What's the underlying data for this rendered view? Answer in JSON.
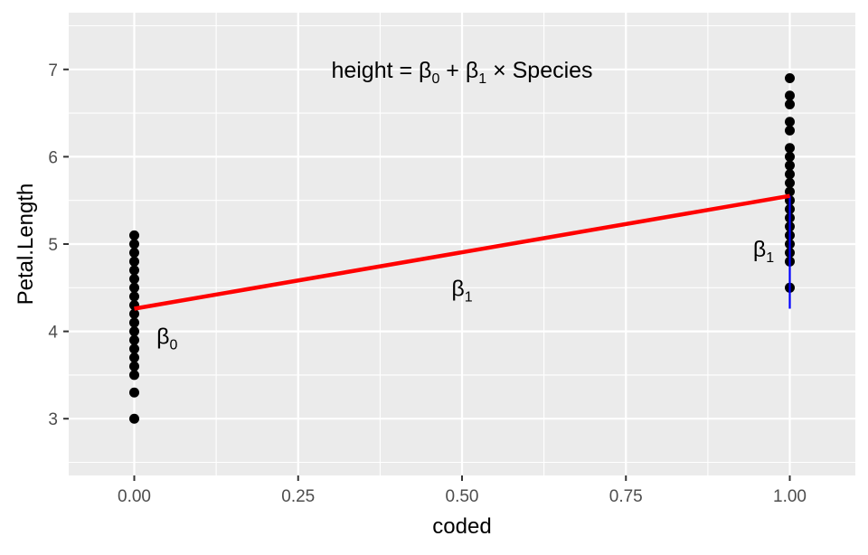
{
  "chart_data": {
    "type": "scatter",
    "xlabel": "coded",
    "ylabel": "Petal.Length",
    "xlim": [
      -0.1,
      1.1
    ],
    "ylim": [
      2.35,
      7.65
    ],
    "x_ticks": [
      0,
      0.25,
      0.5,
      0.75,
      1
    ],
    "x_tick_labels": [
      "0.00",
      "0.25",
      "0.50",
      "0.75",
      "1.00"
    ],
    "y_ticks": [
      3,
      4,
      5,
      6,
      7
    ],
    "y_tick_labels": [
      "3",
      "4",
      "5",
      "6",
      "7"
    ],
    "grid": true,
    "points": {
      "color": "#000000",
      "group0": {
        "x": 0,
        "y": [
          3.0,
          3.3,
          3.5,
          3.6,
          3.7,
          3.8,
          3.9,
          4.0,
          4.1,
          4.2,
          4.3,
          4.4,
          4.5,
          4.6,
          4.7,
          4.8,
          4.9,
          5.0,
          5.1
        ]
      },
      "group1": {
        "x": 1,
        "y": [
          4.5,
          4.8,
          4.9,
          5.0,
          5.1,
          5.2,
          5.3,
          5.4,
          5.5,
          5.6,
          5.7,
          5.8,
          5.9,
          6.0,
          6.1,
          6.3,
          6.4,
          6.6,
          6.7,
          6.9
        ]
      }
    },
    "regression_line": {
      "x": [
        0,
        1
      ],
      "y": [
        4.26,
        5.552
      ],
      "color": "#ff0000"
    },
    "intercept_segment": {
      "x": 1,
      "y": [
        4.26,
        5.552
      ],
      "color": "#0000ff"
    },
    "annotations": [
      {
        "name": "equation",
        "x": 0.5,
        "y": 7.0,
        "parts": [
          "height = β",
          "0",
          " + β",
          "1",
          " × Species"
        ]
      },
      {
        "name": "beta0",
        "x": 0.05,
        "y": 3.95,
        "parts": [
          "β",
          "0"
        ]
      },
      {
        "name": "beta1-mid",
        "x": 0.5,
        "y": 4.5,
        "parts": [
          "β",
          "1"
        ]
      },
      {
        "name": "beta1-right",
        "x": 0.96,
        "y": 4.95,
        "parts": [
          "β",
          "1"
        ]
      }
    ],
    "colors": {
      "panel": "#ebebeb",
      "grid": "#ffffff",
      "tick": "#333333"
    }
  }
}
